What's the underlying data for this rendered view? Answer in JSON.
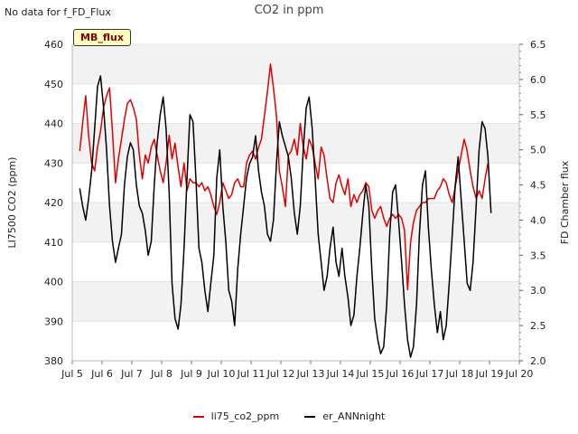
{
  "header": {
    "status_text": "No data for f_FD_Flux",
    "title": "CO2 in ppm",
    "badge": "MB_flux"
  },
  "chart_data": {
    "type": "line",
    "title": "CO2 in ppm",
    "x": {
      "label": "",
      "range": [
        5,
        20
      ],
      "ticks": [
        5,
        6,
        7,
        8,
        9,
        10,
        11,
        12,
        13,
        14,
        15,
        16,
        17,
        18,
        19,
        20
      ],
      "tick_labels": [
        "Jul 5",
        "Jul 6",
        "Jul 7",
        "Jul 8",
        "Jul 9",
        "Jul 10",
        "Jul 11",
        "Jul 12",
        "Jul 13",
        "Jul 14",
        "Jul 15",
        "Jul 16",
        "Jul 17",
        "Jul 18",
        "Jul 19",
        "Jul 20"
      ]
    },
    "y_left": {
      "label": "LI7500 CO2 (ppm)",
      "range": [
        380,
        460
      ],
      "ticks": [
        380,
        390,
        400,
        410,
        420,
        430,
        440,
        450,
        460
      ]
    },
    "y_right": {
      "label": "FD Chamber flux",
      "range": [
        2.0,
        6.5
      ],
      "ticks": [
        2.0,
        2.5,
        3.0,
        3.5,
        4.0,
        4.5,
        5.0,
        5.5,
        6.0,
        6.5
      ],
      "tick_labels": [
        "2.0",
        "2.5",
        "3.0",
        "3.5",
        "4.0",
        "4.5",
        "5.0",
        "5.5",
        "6.0",
        "6.5"
      ]
    },
    "series": [
      {
        "name": "li75_co2_ppm",
        "color": "#e00000",
        "axis": "left",
        "points": [
          [
            5.25,
            433
          ],
          [
            5.35,
            440
          ],
          [
            5.45,
            447
          ],
          [
            5.55,
            437
          ],
          [
            5.65,
            430
          ],
          [
            5.75,
            428
          ],
          [
            5.85,
            434
          ],
          [
            5.95,
            438
          ],
          [
            6.05,
            444
          ],
          [
            6.15,
            447
          ],
          [
            6.25,
            449
          ],
          [
            6.35,
            438
          ],
          [
            6.45,
            425
          ],
          [
            6.55,
            431
          ],
          [
            6.65,
            436
          ],
          [
            6.75,
            441
          ],
          [
            6.85,
            445
          ],
          [
            6.95,
            446
          ],
          [
            7.05,
            444
          ],
          [
            7.15,
            441
          ],
          [
            7.25,
            432
          ],
          [
            7.35,
            426
          ],
          [
            7.45,
            432
          ],
          [
            7.55,
            430
          ],
          [
            7.65,
            434
          ],
          [
            7.75,
            436
          ],
          [
            7.85,
            432
          ],
          [
            7.95,
            428
          ],
          [
            8.05,
            425
          ],
          [
            8.15,
            430
          ],
          [
            8.25,
            437
          ],
          [
            8.35,
            431
          ],
          [
            8.45,
            435
          ],
          [
            8.55,
            429
          ],
          [
            8.65,
            424
          ],
          [
            8.75,
            430
          ],
          [
            8.85,
            423
          ],
          [
            8.95,
            426
          ],
          [
            9.05,
            425
          ],
          [
            9.15,
            425
          ],
          [
            9.25,
            424
          ],
          [
            9.35,
            425
          ],
          [
            9.45,
            423
          ],
          [
            9.55,
            424
          ],
          [
            9.65,
            422
          ],
          [
            9.75,
            419
          ],
          [
            9.85,
            417
          ],
          [
            9.95,
            420
          ],
          [
            10.05,
            425
          ],
          [
            10.15,
            423
          ],
          [
            10.25,
            421
          ],
          [
            10.35,
            422
          ],
          [
            10.45,
            425
          ],
          [
            10.55,
            426
          ],
          [
            10.65,
            424
          ],
          [
            10.75,
            424
          ],
          [
            10.85,
            430
          ],
          [
            10.95,
            432
          ],
          [
            11.05,
            433
          ],
          [
            11.15,
            431
          ],
          [
            11.25,
            434
          ],
          [
            11.35,
            436
          ],
          [
            11.45,
            442
          ],
          [
            11.55,
            448
          ],
          [
            11.65,
            455
          ],
          [
            11.75,
            449
          ],
          [
            11.85,
            442
          ],
          [
            11.95,
            428
          ],
          [
            12.05,
            424
          ],
          [
            12.15,
            419
          ],
          [
            12.25,
            432
          ],
          [
            12.35,
            433
          ],
          [
            12.45,
            436
          ],
          [
            12.55,
            432
          ],
          [
            12.65,
            440
          ],
          [
            12.75,
            434
          ],
          [
            12.85,
            431
          ],
          [
            12.95,
            436
          ],
          [
            13.05,
            434
          ],
          [
            13.15,
            430
          ],
          [
            13.25,
            426
          ],
          [
            13.35,
            434
          ],
          [
            13.45,
            432
          ],
          [
            13.55,
            426
          ],
          [
            13.65,
            421
          ],
          [
            13.75,
            420
          ],
          [
            13.85,
            425
          ],
          [
            13.95,
            427
          ],
          [
            14.05,
            424
          ],
          [
            14.15,
            422
          ],
          [
            14.25,
            426
          ],
          [
            14.35,
            419
          ],
          [
            14.45,
            422
          ],
          [
            14.55,
            420
          ],
          [
            14.65,
            422
          ],
          [
            14.75,
            423
          ],
          [
            14.85,
            425
          ],
          [
            14.95,
            424
          ],
          [
            15.05,
            418
          ],
          [
            15.15,
            416
          ],
          [
            15.25,
            418
          ],
          [
            15.35,
            419
          ],
          [
            15.45,
            416
          ],
          [
            15.55,
            414
          ],
          [
            15.65,
            416
          ],
          [
            15.75,
            417
          ],
          [
            15.85,
            416
          ],
          [
            15.95,
            417
          ],
          [
            16.05,
            416
          ],
          [
            16.15,
            413
          ],
          [
            16.25,
            398
          ],
          [
            16.35,
            410
          ],
          [
            16.45,
            415
          ],
          [
            16.55,
            418
          ],
          [
            16.65,
            419
          ],
          [
            16.75,
            420
          ],
          [
            16.85,
            420
          ],
          [
            16.95,
            421
          ],
          [
            17.05,
            421
          ],
          [
            17.15,
            421
          ],
          [
            17.25,
            423
          ],
          [
            17.35,
            424
          ],
          [
            17.45,
            426
          ],
          [
            17.55,
            425
          ],
          [
            17.65,
            422
          ],
          [
            17.75,
            420
          ],
          [
            17.85,
            424
          ],
          [
            17.95,
            428
          ],
          [
            18.05,
            432
          ],
          [
            18.15,
            436
          ],
          [
            18.25,
            433
          ],
          [
            18.35,
            428
          ],
          [
            18.45,
            424
          ],
          [
            18.55,
            421
          ],
          [
            18.65,
            423
          ],
          [
            18.75,
            421
          ],
          [
            18.85,
            426
          ],
          [
            18.95,
            430
          ]
        ]
      },
      {
        "name": "er_ANNnight",
        "color": "#000000",
        "axis": "right",
        "points": [
          [
            5.25,
            4.45
          ],
          [
            5.35,
            4.2
          ],
          [
            5.45,
            4.0
          ],
          [
            5.55,
            4.3
          ],
          [
            5.65,
            4.7
          ],
          [
            5.75,
            5.3
          ],
          [
            5.85,
            5.9
          ],
          [
            5.95,
            6.05
          ],
          [
            6.05,
            5.6
          ],
          [
            6.15,
            5.0
          ],
          [
            6.25,
            4.2
          ],
          [
            6.35,
            3.7
          ],
          [
            6.45,
            3.4
          ],
          [
            6.55,
            3.6
          ],
          [
            6.65,
            3.8
          ],
          [
            6.75,
            4.5
          ],
          [
            6.85,
            4.9
          ],
          [
            6.95,
            5.1
          ],
          [
            7.05,
            5.0
          ],
          [
            7.15,
            4.5
          ],
          [
            7.25,
            4.2
          ],
          [
            7.35,
            4.1
          ],
          [
            7.45,
            3.85
          ],
          [
            7.55,
            3.5
          ],
          [
            7.65,
            3.7
          ],
          [
            7.75,
            4.5
          ],
          [
            7.85,
            5.1
          ],
          [
            7.95,
            5.5
          ],
          [
            8.05,
            5.75
          ],
          [
            8.15,
            5.3
          ],
          [
            8.25,
            4.4
          ],
          [
            8.35,
            3.1
          ],
          [
            8.45,
            2.6
          ],
          [
            8.55,
            2.45
          ],
          [
            8.65,
            2.8
          ],
          [
            8.75,
            3.6
          ],
          [
            8.85,
            4.6
          ],
          [
            8.95,
            5.5
          ],
          [
            9.05,
            5.4
          ],
          [
            9.15,
            4.6
          ],
          [
            9.25,
            3.6
          ],
          [
            9.35,
            3.4
          ],
          [
            9.45,
            3.0
          ],
          [
            9.55,
            2.7
          ],
          [
            9.65,
            3.1
          ],
          [
            9.75,
            3.5
          ],
          [
            9.85,
            4.6
          ],
          [
            9.95,
            5.0
          ],
          [
            10.05,
            4.2
          ],
          [
            10.15,
            3.7
          ],
          [
            10.25,
            3.0
          ],
          [
            10.35,
            2.85
          ],
          [
            10.45,
            2.5
          ],
          [
            10.55,
            3.3
          ],
          [
            10.65,
            3.8
          ],
          [
            10.75,
            4.2
          ],
          [
            10.85,
            4.6
          ],
          [
            10.95,
            4.8
          ],
          [
            11.05,
            4.9
          ],
          [
            11.15,
            5.2
          ],
          [
            11.25,
            4.7
          ],
          [
            11.35,
            4.4
          ],
          [
            11.45,
            4.2
          ],
          [
            11.55,
            3.8
          ],
          [
            11.65,
            3.7
          ],
          [
            11.75,
            4.0
          ],
          [
            11.85,
            4.8
          ],
          [
            11.95,
            5.4
          ],
          [
            12.05,
            5.2
          ],
          [
            12.15,
            5.05
          ],
          [
            12.25,
            4.9
          ],
          [
            12.35,
            4.6
          ],
          [
            12.45,
            4.1
          ],
          [
            12.55,
            3.8
          ],
          [
            12.65,
            4.2
          ],
          [
            12.75,
            5.0
          ],
          [
            12.85,
            5.6
          ],
          [
            12.95,
            5.75
          ],
          [
            13.05,
            5.3
          ],
          [
            13.15,
            4.6
          ],
          [
            13.25,
            3.8
          ],
          [
            13.35,
            3.4
          ],
          [
            13.45,
            3.0
          ],
          [
            13.55,
            3.2
          ],
          [
            13.65,
            3.6
          ],
          [
            13.75,
            3.9
          ],
          [
            13.85,
            3.4
          ],
          [
            13.95,
            3.2
          ],
          [
            14.05,
            3.6
          ],
          [
            14.15,
            3.2
          ],
          [
            14.25,
            2.9
          ],
          [
            14.35,
            2.5
          ],
          [
            14.45,
            2.65
          ],
          [
            14.55,
            3.2
          ],
          [
            14.65,
            3.6
          ],
          [
            14.75,
            4.1
          ],
          [
            14.85,
            4.5
          ],
          [
            14.95,
            4.2
          ],
          [
            15.05,
            3.3
          ],
          [
            15.15,
            2.6
          ],
          [
            15.25,
            2.3
          ],
          [
            15.35,
            2.1
          ],
          [
            15.45,
            2.2
          ],
          [
            15.55,
            2.8
          ],
          [
            15.65,
            3.8
          ],
          [
            15.75,
            4.4
          ],
          [
            15.85,
            4.5
          ],
          [
            15.95,
            4.0
          ],
          [
            16.05,
            3.4
          ],
          [
            16.15,
            2.8
          ],
          [
            16.25,
            2.3
          ],
          [
            16.35,
            2.05
          ],
          [
            16.45,
            2.2
          ],
          [
            16.55,
            2.8
          ],
          [
            16.65,
            3.8
          ],
          [
            16.75,
            4.5
          ],
          [
            16.85,
            4.7
          ],
          [
            16.95,
            3.9
          ],
          [
            17.05,
            3.3
          ],
          [
            17.15,
            2.8
          ],
          [
            17.25,
            2.4
          ],
          [
            17.35,
            2.7
          ],
          [
            17.45,
            2.3
          ],
          [
            17.55,
            2.5
          ],
          [
            17.65,
            3.1
          ],
          [
            17.75,
            3.8
          ],
          [
            17.85,
            4.5
          ],
          [
            17.95,
            4.9
          ],
          [
            18.05,
            4.3
          ],
          [
            18.15,
            3.7
          ],
          [
            18.25,
            3.1
          ],
          [
            18.35,
            3.0
          ],
          [
            18.45,
            3.4
          ],
          [
            18.55,
            4.2
          ],
          [
            18.65,
            5.0
          ],
          [
            18.75,
            5.4
          ],
          [
            18.85,
            5.3
          ],
          [
            18.95,
            4.9
          ],
          [
            19.05,
            4.1
          ]
        ]
      }
    ],
    "grid": "horizontal alternating bands",
    "legend": {
      "placement": "bottom-center",
      "entries": [
        "li75_co2_ppm",
        "er_ANNnight"
      ]
    }
  }
}
